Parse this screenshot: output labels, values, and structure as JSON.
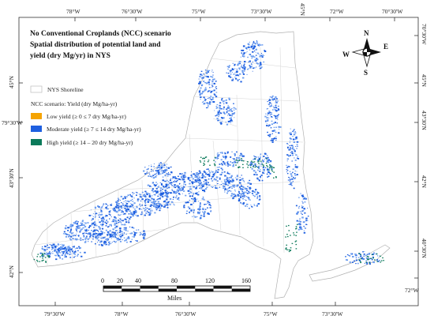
{
  "title_lines": [
    "No Conventional Croplands (NCC) scenario",
    "Spatial distribution of potential land and",
    "yield (dry Mg/yr) in NYS"
  ],
  "top_ticks": [
    "78°W",
    "76°30'W",
    "75°W",
    "73°30'W",
    "45°N",
    "72°W",
    "70°30'W"
  ],
  "bottom_ticks": [
    "79°30'W",
    "78°W",
    "76°30'W",
    "75°W",
    "73°30'W"
  ],
  "left_ticks": [
    "45°N",
    "79°30'W",
    "43°30'N",
    "42°N"
  ],
  "right_ticks": [
    "70°30'W",
    "45°N",
    "43°30'N",
    "42°N",
    "40°30'N",
    "72°W"
  ],
  "legend": {
    "shoreline_label": "NYS Shoreline",
    "scenario_label": "NCC scenario: Yield (dry Mg/ha-yr)",
    "classes": [
      {
        "label": "Low yield (≥ 0 ≤ 7 dry Mg/ha-yr)",
        "color": "#f5a300"
      },
      {
        "label": "Moderate yield (≥ 7 ≤ 14 dry Mg/ha-yr)",
        "color": "#1e5fe0"
      },
      {
        "label": "High yield (≥ 14 – 20 dry Mg/ha-yr)",
        "color": "#0b7a5a"
      }
    ]
  },
  "scalebar": {
    "ticks": [
      "0",
      "20",
      "40",
      "80",
      "120",
      "160"
    ],
    "unit": "Miles"
  },
  "compass": {
    "n": "N",
    "s": "S",
    "e": "E",
    "w": "W"
  },
  "colors": {
    "state_fill": "#ffffff",
    "outline": "#b0b0b0",
    "moderate": "#1e5fe0",
    "high": "#0b7a5a",
    "light": "#6fa0f0"
  }
}
